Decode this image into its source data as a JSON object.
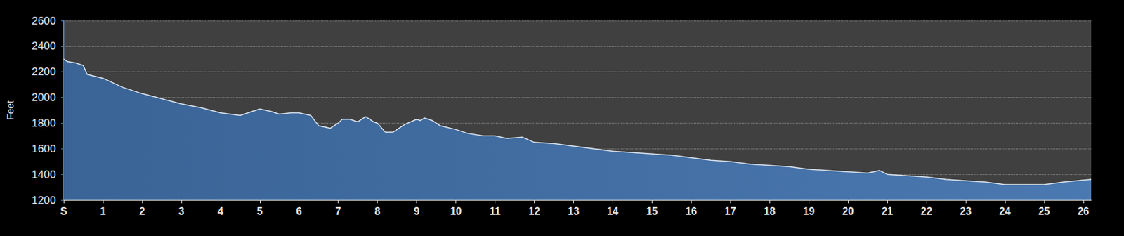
{
  "chart_data": {
    "type": "area",
    "y_label": "Feet",
    "color": "#4a78b0",
    "grid": true,
    "xlim": [
      0,
      26.2
    ],
    "xticks": [
      {
        "value": 0,
        "label": "S"
      },
      1,
      2,
      3,
      4,
      5,
      6,
      7,
      8,
      9,
      10,
      11,
      12,
      13,
      14,
      15,
      16,
      17,
      18,
      19,
      20,
      21,
      22,
      23,
      24,
      25,
      26
    ],
    "ylim": [
      1200,
      2600
    ],
    "yticks": [
      1200,
      1400,
      1600,
      1800,
      2000,
      2200,
      2400,
      2600
    ],
    "x": [
      0,
      0.1,
      0.3,
      0.5,
      0.6,
      1.0,
      1.5,
      2.0,
      2.5,
      3.0,
      3.5,
      4.0,
      4.5,
      4.7,
      5.0,
      5.3,
      5.5,
      5.8,
      6.0,
      6.3,
      6.5,
      6.8,
      7.0,
      7.1,
      7.3,
      7.5,
      7.7,
      7.9,
      8.0,
      8.2,
      8.4,
      8.7,
      9.0,
      9.1,
      9.2,
      9.4,
      9.6,
      10.0,
      10.3,
      10.7,
      11.0,
      11.3,
      11.7,
      12.0,
      12.5,
      13.0,
      13.5,
      14.0,
      14.5,
      15.0,
      15.5,
      16.0,
      16.5,
      17.0,
      17.5,
      18.0,
      18.5,
      19.0,
      19.5,
      20.0,
      20.5,
      20.8,
      21.0,
      21.5,
      22.0,
      22.5,
      23.0,
      23.5,
      24.0,
      24.5,
      25.0,
      25.5,
      26.0,
      26.2
    ],
    "values": [
      2300,
      2280,
      2270,
      2250,
      2180,
      2150,
      2080,
      2030,
      1990,
      1950,
      1920,
      1880,
      1860,
      1880,
      1910,
      1890,
      1870,
      1880,
      1880,
      1860,
      1780,
      1760,
      1800,
      1830,
      1830,
      1810,
      1850,
      1810,
      1800,
      1730,
      1730,
      1790,
      1830,
      1820,
      1840,
      1820,
      1780,
      1750,
      1720,
      1700,
      1700,
      1680,
      1690,
      1650,
      1640,
      1620,
      1600,
      1580,
      1570,
      1560,
      1550,
      1530,
      1510,
      1500,
      1480,
      1470,
      1460,
      1440,
      1430,
      1420,
      1410,
      1430,
      1400,
      1390,
      1380,
      1360,
      1350,
      1340,
      1320,
      1320,
      1320,
      1340,
      1355,
      1360
    ]
  }
}
